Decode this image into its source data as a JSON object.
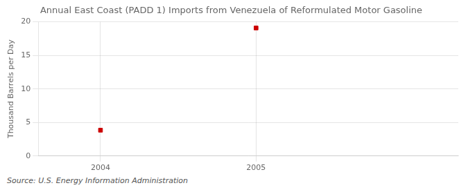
{
  "chart_data": {
    "type": "scatter",
    "title": "Annual East Coast (PADD 1) Imports from Venezuela of Reformulated Motor Gasoline",
    "y_label": "Thousand Barrels per Day",
    "source": "Source: U.S. Energy Information Administration",
    "x": [
      2004,
      2005
    ],
    "values": [
      3.849,
      19.082
    ],
    "color": "#cc0000",
    "marker": "square",
    "xlim": [
      2003.6,
      2006.3
    ],
    "xticks": [
      2004,
      2005
    ],
    "ylim": [
      0,
      20
    ],
    "yticks": [
      0,
      5,
      10,
      15,
      20
    ],
    "grid": true
  }
}
